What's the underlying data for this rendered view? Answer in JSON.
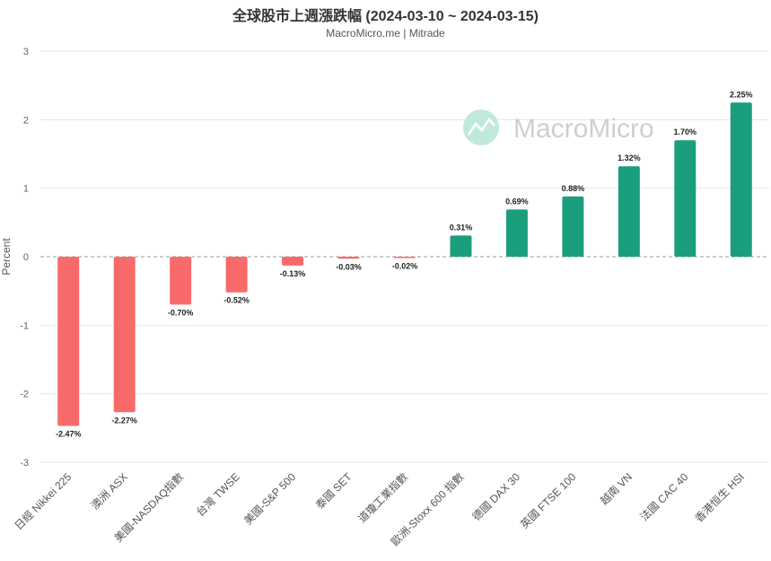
{
  "chart_data": {
    "type": "bar",
    "title": "全球股市上週漲跌幅 (2024-03-10 ~ 2024-03-15)",
    "subtitle": "MacroMicro.me | Mitrade",
    "ylabel": "Percent",
    "xlabel": "",
    "ylim": [
      -3,
      3
    ],
    "yticks": [
      3,
      2,
      1,
      0,
      -1,
      -2,
      -3
    ],
    "grid": true,
    "categories": [
      "日經 Nikkei 225",
      "澳洲 ASX",
      "美國-NASDAQ指數",
      "台灣 TWSE",
      "美國-S&P 500",
      "泰國 SET",
      "道瓊工業指數",
      "歐洲-Stoxx 600 指數",
      "德國 DAX 30",
      "英國 FTSE 100",
      "越南 VN",
      "法國 CAC 40",
      "香港恒生 HSI"
    ],
    "values": [
      -2.47,
      -2.27,
      -0.7,
      -0.52,
      -0.13,
      -0.03,
      -0.02,
      0.31,
      0.69,
      0.88,
      1.32,
      1.7,
      2.25
    ],
    "value_labels": [
      "-2.47%",
      "-2.27%",
      "-0.70%",
      "-0.52%",
      "-0.13%",
      "-0.03%",
      "-0.02%",
      "0.31%",
      "0.69%",
      "0.88%",
      "1.32%",
      "1.70%",
      "2.25%"
    ],
    "colors": {
      "positive": "#1a9e7d",
      "negative": "#f86a6a",
      "zero_line": "#999999",
      "grid": "#e6e6e6"
    }
  },
  "watermark": {
    "text": "MacroMicro",
    "icon": "macromicro-logo-icon"
  }
}
